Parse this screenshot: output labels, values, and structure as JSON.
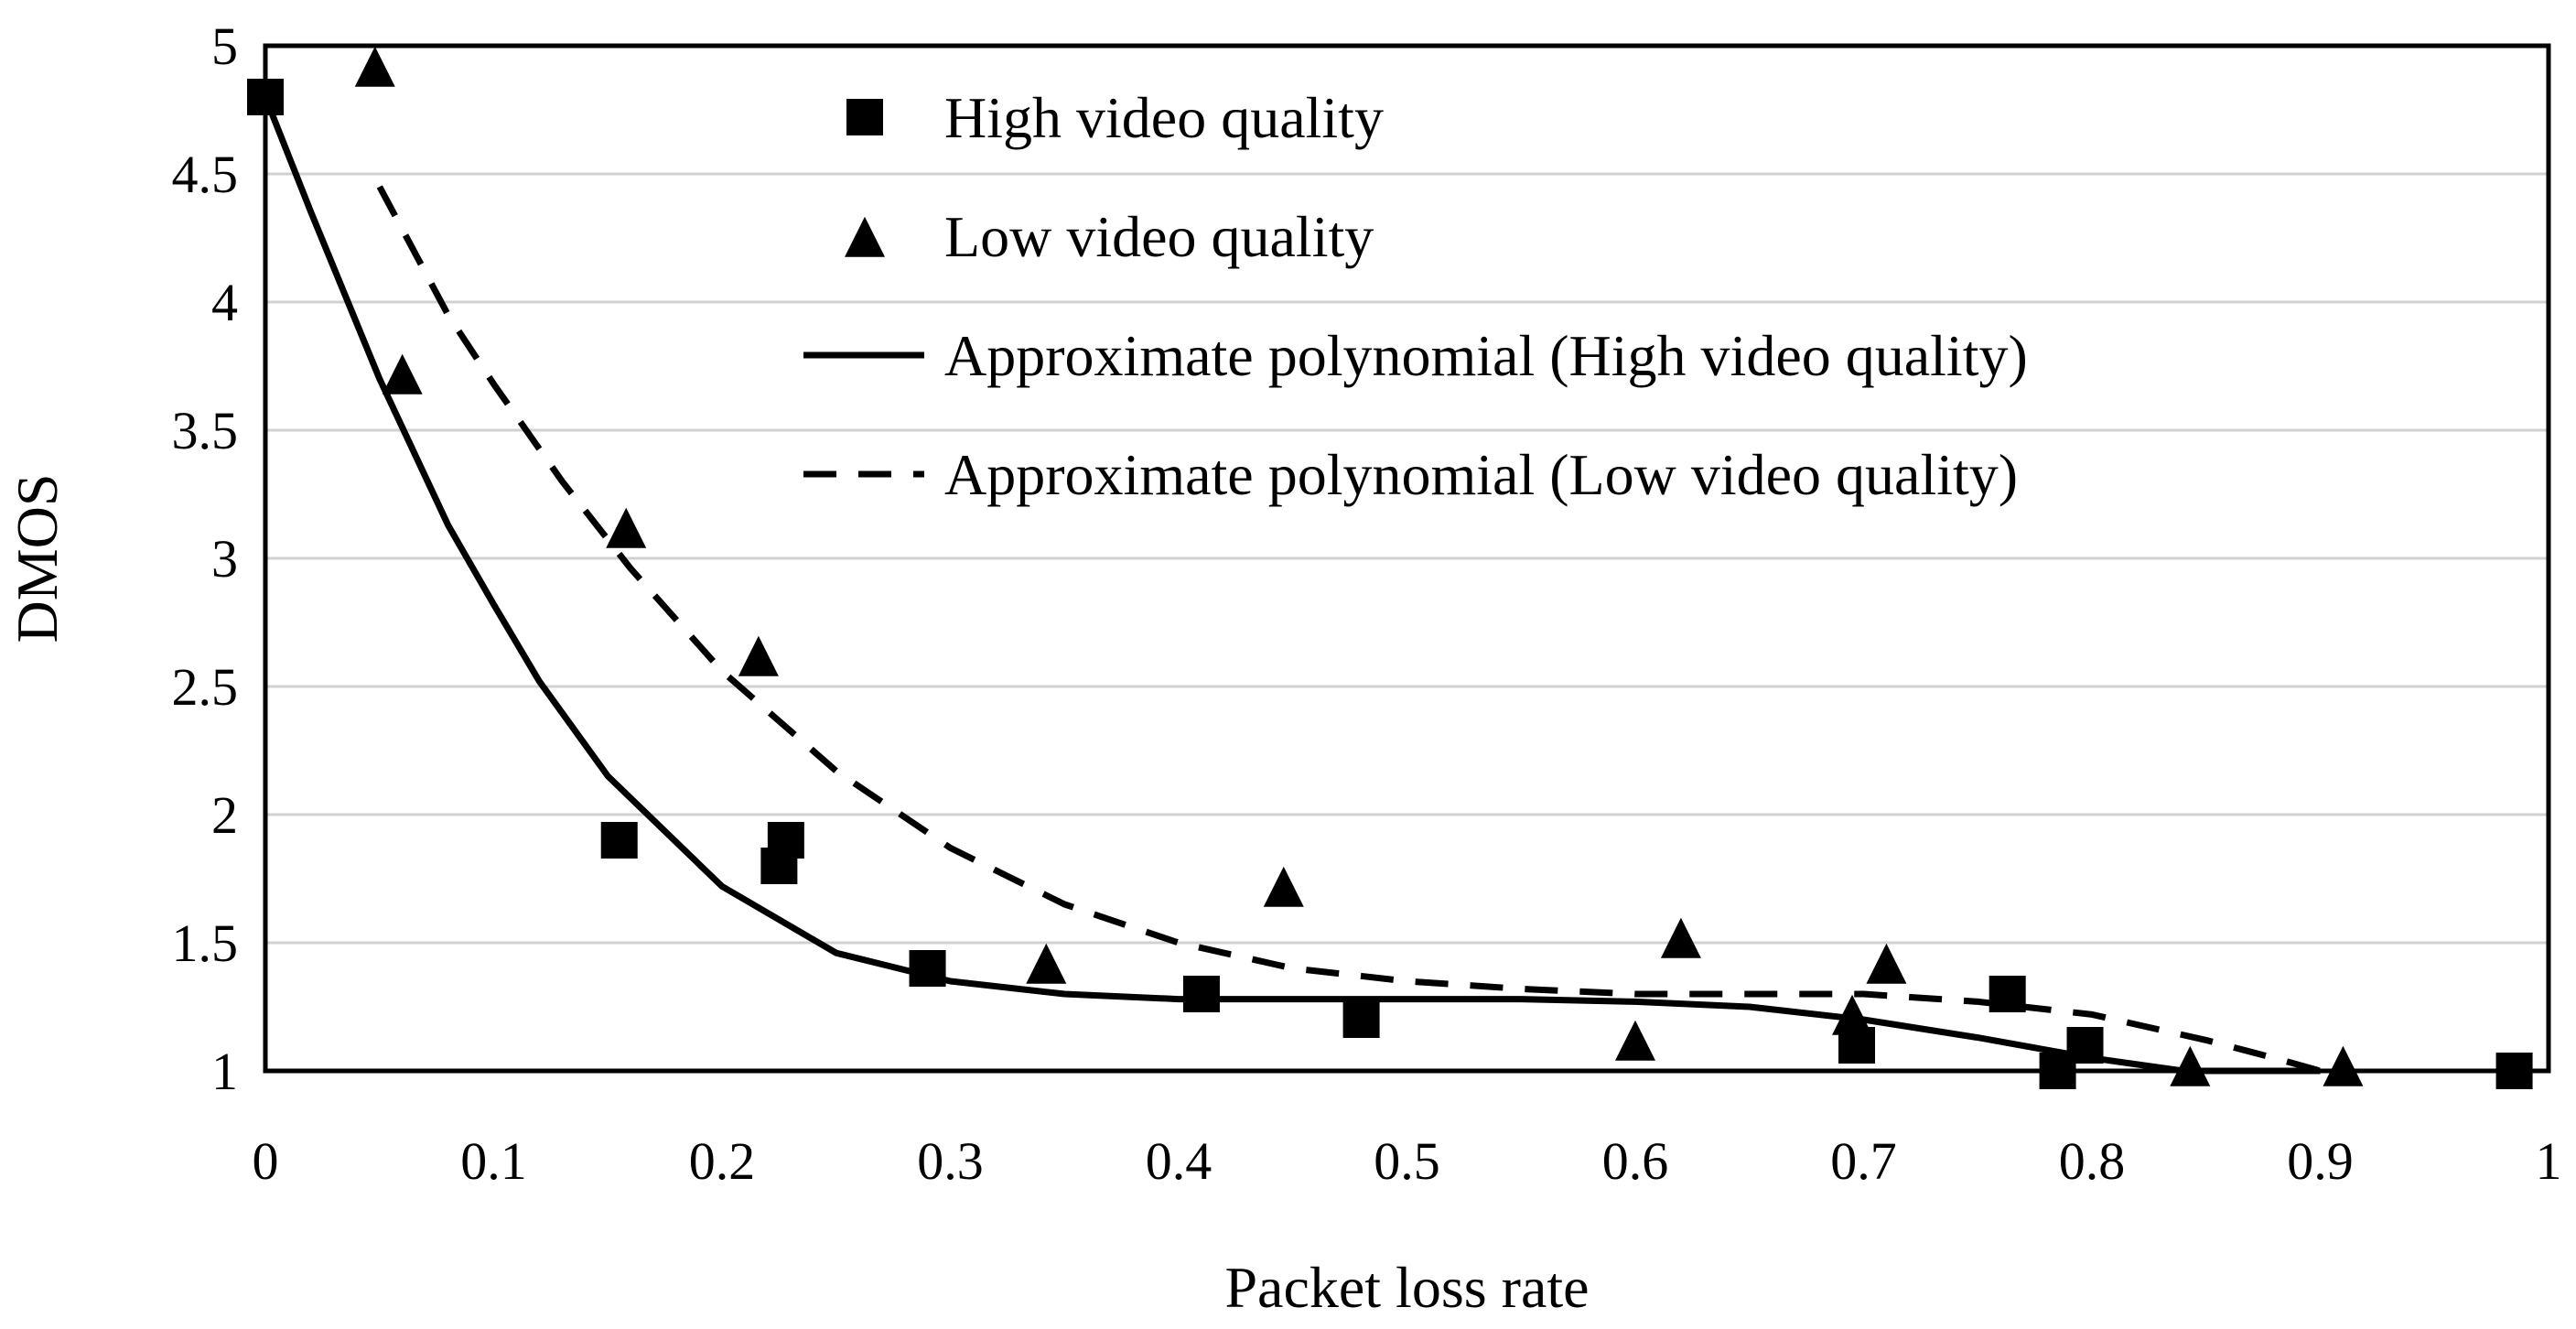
{
  "chart_data": {
    "type": "scatter",
    "title": "",
    "xlabel": "Packet loss rate",
    "ylabel": "DMOS",
    "xlim": [
      0,
      1
    ],
    "ylim": [
      1,
      5
    ],
    "x_ticks": [
      "0",
      "0.1",
      "0.2",
      "0.3",
      "0.4",
      "0.5",
      "0.6",
      "0.7",
      "0.8",
      "0.9",
      "1"
    ],
    "y_ticks": [
      "1",
      "1.5",
      "2",
      "2.5",
      "3",
      "3.5",
      "4",
      "4.5",
      "5"
    ],
    "grid": "horizontal",
    "legend_position": "top-center",
    "series": [
      {
        "name": "High video quality",
        "kind": "points",
        "marker": "square",
        "x": [
          0,
          0.155,
          0.225,
          0.228,
          0.29,
          0.41,
          0.48,
          0.697,
          0.763,
          0.785,
          0.797,
          0.985
        ],
        "y": [
          4.8,
          1.9,
          1.8,
          1.9,
          1.4,
          1.3,
          1.2,
          1.1,
          1.3,
          1.0,
          1.1,
          1.0
        ]
      },
      {
        "name": "Low video quality",
        "kind": "points",
        "marker": "triangle",
        "x": [
          0.048,
          0.06,
          0.158,
          0.216,
          0.342,
          0.446,
          0.6,
          0.62,
          0.695,
          0.71,
          0.843,
          0.91
        ],
        "y": [
          4.9,
          3.7,
          3.1,
          2.6,
          1.4,
          1.7,
          1.1,
          1.5,
          1.2,
          1.4,
          1.0,
          1.0
        ]
      },
      {
        "name": "Approximate polynomial (High video quality)",
        "kind": "line",
        "style": "solid",
        "x": [
          0,
          0.02,
          0.05,
          0.08,
          0.1,
          0.12,
          0.15,
          0.2,
          0.25,
          0.3,
          0.35,
          0.4,
          0.45,
          0.5,
          0.55,
          0.6,
          0.65,
          0.7,
          0.75,
          0.8,
          0.84,
          0.88,
          0.9
        ],
        "y": [
          4.8,
          4.35,
          3.7,
          3.13,
          2.82,
          2.52,
          2.15,
          1.72,
          1.46,
          1.35,
          1.3,
          1.28,
          1.28,
          1.28,
          1.28,
          1.27,
          1.25,
          1.2,
          1.13,
          1.05,
          1.0,
          1.0,
          1.0
        ]
      },
      {
        "name": "Approximate polynomial (Low video quality)",
        "kind": "line",
        "style": "dashed",
        "x": [
          0.05,
          0.08,
          0.1,
          0.13,
          0.16,
          0.2,
          0.25,
          0.3,
          0.35,
          0.4,
          0.45,
          0.5,
          0.55,
          0.6,
          0.65,
          0.7,
          0.75,
          0.8,
          0.85,
          0.88,
          0.9
        ],
        "y": [
          4.45,
          3.95,
          3.68,
          3.3,
          2.96,
          2.56,
          2.17,
          1.87,
          1.65,
          1.5,
          1.4,
          1.35,
          1.32,
          1.3,
          1.3,
          1.3,
          1.27,
          1.22,
          1.12,
          1.05,
          1.0
        ]
      }
    ]
  }
}
